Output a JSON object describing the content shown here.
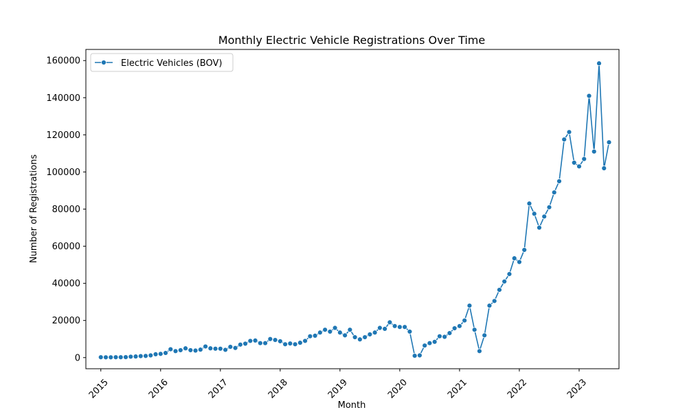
{
  "chart_data": {
    "type": "line",
    "title": "Monthly Electric Vehicle Registrations Over Time",
    "xlabel": "Month",
    "ylabel": "Number of Registrations",
    "xlim": [
      "2014-10",
      "2023-09"
    ],
    "ylim": [
      -6000,
      166000
    ],
    "x_ticks": [
      "2015",
      "2016",
      "2017",
      "2018",
      "2019",
      "2020",
      "2021",
      "2022",
      "2023"
    ],
    "y_ticks": [
      0,
      20000,
      40000,
      60000,
      80000,
      100000,
      120000,
      140000,
      160000
    ],
    "y_tick_labels": [
      "0",
      "20000",
      "40000",
      "60000",
      "80000",
      "100000",
      "120000",
      "140000",
      "160000"
    ],
    "grid": false,
    "legend": {
      "position": "upper-left"
    },
    "colors": {
      "series": "#1f77b4",
      "axis": "#000000"
    },
    "series": [
      {
        "name": "Electric Vehicles (BOV)",
        "marker": "circle",
        "x": [
          "2015-01",
          "2015-02",
          "2015-03",
          "2015-04",
          "2015-05",
          "2015-06",
          "2015-07",
          "2015-08",
          "2015-09",
          "2015-10",
          "2015-11",
          "2015-12",
          "2016-01",
          "2016-02",
          "2016-03",
          "2016-04",
          "2016-05",
          "2016-06",
          "2016-07",
          "2016-08",
          "2016-09",
          "2016-10",
          "2016-11",
          "2016-12",
          "2017-01",
          "2017-02",
          "2017-03",
          "2017-04",
          "2017-05",
          "2017-06",
          "2017-07",
          "2017-08",
          "2017-09",
          "2017-10",
          "2017-11",
          "2017-12",
          "2018-01",
          "2018-02",
          "2018-03",
          "2018-04",
          "2018-05",
          "2018-06",
          "2018-07",
          "2018-08",
          "2018-09",
          "2018-10",
          "2018-11",
          "2018-12",
          "2019-01",
          "2019-02",
          "2019-03",
          "2019-04",
          "2019-05",
          "2019-06",
          "2019-07",
          "2019-08",
          "2019-09",
          "2019-10",
          "2019-11",
          "2019-12",
          "2020-01",
          "2020-02",
          "2020-03",
          "2020-04",
          "2020-05",
          "2020-06",
          "2020-07",
          "2020-08",
          "2020-09",
          "2020-10",
          "2020-11",
          "2020-12",
          "2021-01",
          "2021-02",
          "2021-03",
          "2021-04",
          "2021-05",
          "2021-06",
          "2021-07",
          "2021-08",
          "2021-09",
          "2021-10",
          "2021-11",
          "2021-12",
          "2022-01",
          "2022-02",
          "2022-03",
          "2022-04",
          "2022-05",
          "2022-06",
          "2022-07",
          "2022-08",
          "2022-09",
          "2022-10",
          "2022-11",
          "2022-12",
          "2023-01",
          "2023-02",
          "2023-03",
          "2023-04",
          "2023-05",
          "2023-06",
          "2023-07"
        ],
        "y": [
          200,
          150,
          150,
          200,
          200,
          250,
          500,
          600,
          800,
          900,
          1200,
          1800,
          2000,
          2500,
          4500,
          3500,
          4000,
          5000,
          4000,
          3800,
          4300,
          6000,
          5000,
          4800,
          4800,
          4200,
          5800,
          5200,
          7000,
          7500,
          9000,
          9200,
          7800,
          7800,
          10000,
          9500,
          8800,
          7200,
          7600,
          7200,
          8000,
          9000,
          11500,
          11800,
          13500,
          15000,
          14000,
          16000,
          13500,
          12000,
          15000,
          11000,
          9800,
          11000,
          12500,
          13500,
          16000,
          15500,
          19000,
          17000,
          16500,
          16500,
          14000,
          1000,
          1200,
          6500,
          7800,
          8500,
          11500,
          11200,
          13200,
          15800,
          17000,
          20000,
          28000,
          15000,
          3500,
          12000,
          28000,
          30500,
          36500,
          41000,
          45000,
          53500,
          51500,
          58000,
          83000,
          77500,
          70000,
          76000,
          81000,
          89000,
          95000,
          117500,
          121500,
          105000,
          103000,
          107000,
          141000,
          111000,
          158500,
          102000,
          116000
        ]
      }
    ]
  }
}
